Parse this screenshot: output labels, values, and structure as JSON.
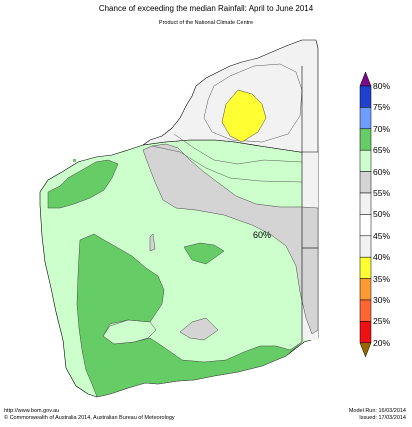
{
  "title": "Chance of exceeding the median Rainfall: April to June 2014",
  "subtitle": "Product of the National Climate Centre",
  "map_label": "60%",
  "legend": {
    "labels": [
      "80%",
      "75%",
      "70%",
      "65%",
      "60%",
      "55%",
      "50%",
      "45%",
      "40%",
      "35%",
      "30%",
      "25%",
      "20%"
    ],
    "colors": [
      "#1f3fcf",
      "#6f9dff",
      "#66cc66",
      "#ccffcc",
      "#d4d4d4",
      "#f2f2f2",
      "#ffffff",
      "#f2f2f2",
      "#ffff33",
      "#ff9933",
      "#ff6633",
      "#ee1111"
    ],
    "top_arrow_color": "#7a0a8a",
    "bottom_arrow_color": "#996600"
  },
  "footer": {
    "url": "http://www.bom.gov.au",
    "copyright": "©  Commonwealth of Australia 2014, Australian Bureau of Meteorology",
    "model_run": "Model Run: 16/03/2014",
    "issued": "Issued: 17/03/2014"
  }
}
